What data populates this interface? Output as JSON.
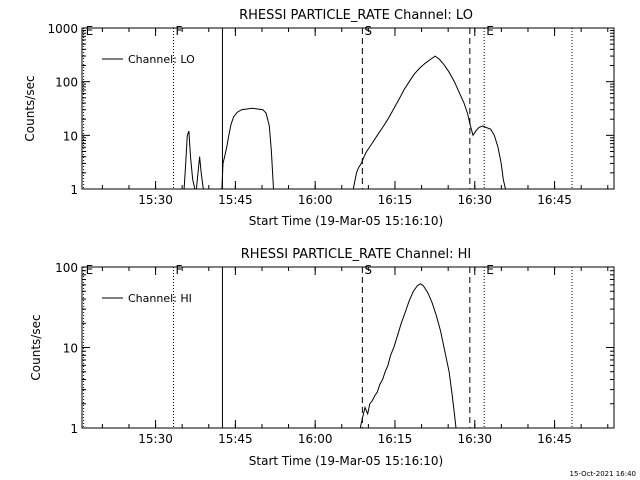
{
  "footer": {
    "timestamp": "15-Oct-2021 16:40"
  },
  "chart_data": [
    {
      "type": "line",
      "title": "RHESSI PARTICLE_RATE Channel: LO",
      "xlabel": "Start Time (19-Mar-05 15:16:10)",
      "ylabel": "Counts/sec",
      "x_unit": "minutes since 15:16:10",
      "xlim": [
        0,
        100
      ],
      "ylim": [
        1,
        1000
      ],
      "y_scale": "log",
      "x_ticks": [
        {
          "value": 13.83,
          "label": "15:30"
        },
        {
          "value": 28.83,
          "label": "15:45"
        },
        {
          "value": 43.83,
          "label": "16:00"
        },
        {
          "value": 58.83,
          "label": "16:15"
        },
        {
          "value": 73.83,
          "label": "16:30"
        },
        {
          "value": 88.83,
          "label": "16:45"
        }
      ],
      "y_ticks": [
        {
          "value": 1,
          "label": "1"
        },
        {
          "value": 10,
          "label": "10"
        },
        {
          "value": 100,
          "label": "100"
        },
        {
          "value": 1000,
          "label": "1000"
        }
      ],
      "legend": {
        "label": "Channel: LO",
        "position": "top-left"
      },
      "markers": [
        {
          "label": "E",
          "x": 0.3,
          "style": "dotted"
        },
        {
          "label": "F",
          "x": 17.2,
          "style": "dotted"
        },
        {
          "x": 26.4,
          "style": "solid"
        },
        {
          "label": "S",
          "x": 52.7,
          "style": "dashed"
        },
        {
          "x": 72.9,
          "style": "dashed"
        },
        {
          "label": "E",
          "x": 75.6,
          "style": "dotted"
        },
        {
          "x": 92.1,
          "style": "dotted"
        }
      ],
      "series": [
        {
          "name": "Channel: LO",
          "segments": [
            [
              [
                19.2,
                1
              ],
              [
                19.5,
                3
              ],
              [
                19.8,
                10
              ],
              [
                20.1,
                12
              ],
              [
                20.4,
                4
              ],
              [
                20.8,
                1.5
              ],
              [
                21.2,
                1
              ]
            ],
            [
              [
                21.5,
                1
              ],
              [
                21.8,
                2
              ],
              [
                22.1,
                4
              ],
              [
                22.4,
                2
              ],
              [
                22.8,
                1
              ]
            ],
            [
              [
                26.3,
                1
              ],
              [
                26.5,
                3
              ],
              [
                26.8,
                4
              ],
              [
                27.2,
                6
              ],
              [
                27.6,
                10
              ],
              [
                28.0,
                16
              ],
              [
                28.5,
                22
              ],
              [
                29.2,
                27
              ],
              [
                30.0,
                30
              ],
              [
                31.0,
                31
              ],
              [
                32.0,
                32
              ],
              [
                33.0,
                31
              ],
              [
                34.0,
                30
              ],
              [
                34.6,
                26
              ],
              [
                35.2,
                15
              ],
              [
                35.6,
                5
              ],
              [
                36.0,
                1
              ]
            ],
            [
              [
                51.0,
                1
              ],
              [
                51.6,
                2
              ],
              [
                52.0,
                2.5
              ],
              [
                52.5,
                3
              ],
              [
                53.0,
                4
              ],
              [
                53.5,
                5
              ],
              [
                54.5,
                7
              ],
              [
                55.5,
                10
              ],
              [
                56.5,
                14
              ],
              [
                57.5,
                20
              ],
              [
                58.5,
                30
              ],
              [
                59.5,
                45
              ],
              [
                60.5,
                70
              ],
              [
                61.5,
                100
              ],
              [
                62.5,
                140
              ],
              [
                63.5,
                180
              ],
              [
                64.5,
                220
              ],
              [
                65.5,
                260
              ],
              [
                66.4,
                300
              ],
              [
                67.2,
                260
              ],
              [
                68.0,
                210
              ],
              [
                69.0,
                150
              ],
              [
                70.0,
                100
              ],
              [
                71.0,
                60
              ],
              [
                71.8,
                40
              ],
              [
                72.5,
                25
              ],
              [
                73.0,
                15
              ],
              [
                73.5,
                10
              ],
              [
                74.0,
                12
              ],
              [
                74.6,
                14
              ],
              [
                75.3,
                15
              ],
              [
                76.0,
                14
              ],
              [
                76.8,
                13
              ],
              [
                77.5,
                10
              ],
              [
                78.2,
                6
              ],
              [
                78.8,
                3
              ],
              [
                79.2,
                1.5
              ],
              [
                79.6,
                1
              ]
            ]
          ]
        }
      ]
    },
    {
      "type": "line",
      "title": "RHESSI PARTICLE_RATE Channel: HI",
      "xlabel": "Start Time (19-Mar-05 15:16:10)",
      "ylabel": "Counts/sec",
      "x_unit": "minutes since 15:16:10",
      "xlim": [
        0,
        100
      ],
      "ylim": [
        1,
        100
      ],
      "y_scale": "log",
      "x_ticks": [
        {
          "value": 13.83,
          "label": "15:30"
        },
        {
          "value": 28.83,
          "label": "15:45"
        },
        {
          "value": 43.83,
          "label": "16:00"
        },
        {
          "value": 58.83,
          "label": "16:15"
        },
        {
          "value": 73.83,
          "label": "16:30"
        },
        {
          "value": 88.83,
          "label": "16:45"
        }
      ],
      "y_ticks": [
        {
          "value": 1,
          "label": "1"
        },
        {
          "value": 10,
          "label": "10"
        },
        {
          "value": 100,
          "label": "100"
        }
      ],
      "legend": {
        "label": "Channel: HI",
        "position": "top-left"
      },
      "markers": [
        {
          "label": "E",
          "x": 0.3,
          "style": "dotted"
        },
        {
          "label": "F",
          "x": 17.2,
          "style": "dotted"
        },
        {
          "x": 26.4,
          "style": "solid"
        },
        {
          "label": "S",
          "x": 52.7,
          "style": "dashed"
        },
        {
          "x": 72.9,
          "style": "dashed"
        },
        {
          "label": "E",
          "x": 75.6,
          "style": "dotted"
        },
        {
          "x": 92.1,
          "style": "dotted"
        }
      ],
      "series": [
        {
          "name": "Channel: HI",
          "segments": [
            [
              [
                52.3,
                1
              ],
              [
                52.8,
                1.4
              ],
              [
                53.2,
                1.8
              ],
              [
                53.7,
                1.5
              ],
              [
                54.1,
                2
              ],
              [
                54.6,
                2.2
              ],
              [
                55.0,
                2.5
              ],
              [
                55.5,
                2.8
              ],
              [
                56.0,
                3.5
              ],
              [
                56.5,
                4
              ],
              [
                57.0,
                5
              ],
              [
                57.5,
                6
              ],
              [
                58.0,
                8
              ],
              [
                58.6,
                10
              ],
              [
                59.3,
                14
              ],
              [
                60.0,
                20
              ],
              [
                60.8,
                28
              ],
              [
                61.5,
                38
              ],
              [
                62.3,
                50
              ],
              [
                63.0,
                58
              ],
              [
                63.6,
                62
              ],
              [
                64.2,
                58
              ],
              [
                65.0,
                48
              ],
              [
                65.8,
                36
              ],
              [
                66.6,
                25
              ],
              [
                67.4,
                16
              ],
              [
                68.2,
                9
              ],
              [
                69.0,
                5
              ],
              [
                69.6,
                2.5
              ],
              [
                70.0,
                1.5
              ],
              [
                70.3,
                1
              ]
            ]
          ]
        }
      ]
    }
  ]
}
